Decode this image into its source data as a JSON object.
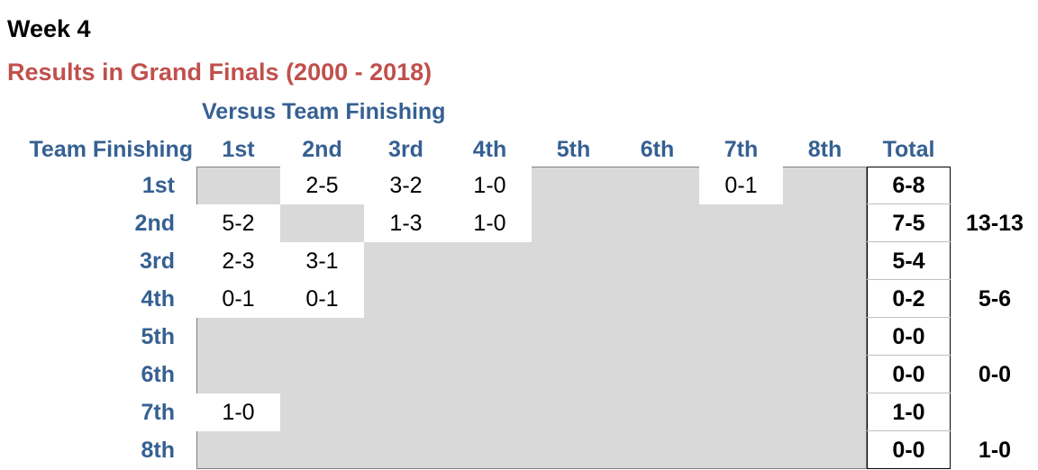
{
  "header": {
    "week": "Week 4",
    "subtitle": "Results in Grand Finals (2000 - 2018)",
    "versus_label": "Versus Team Finishing",
    "row_header": "Team Finishing"
  },
  "columns": [
    "1st",
    "2nd",
    "3rd",
    "4th",
    "5th",
    "6th",
    "7th",
    "8th"
  ],
  "total_label": "Total",
  "rows": [
    {
      "label": "1st",
      "cells": [
        "",
        "2-5",
        "3-2",
        "1-0",
        "",
        "",
        "0-1",
        ""
      ],
      "total": "6-8"
    },
    {
      "label": "2nd",
      "cells": [
        "5-2",
        "",
        "1-3",
        "1-0",
        "",
        "",
        "",
        ""
      ],
      "total": "7-5"
    },
    {
      "label": "3rd",
      "cells": [
        "2-3",
        "3-1",
        "",
        "",
        "",
        "",
        "",
        ""
      ],
      "total": "5-4"
    },
    {
      "label": "4th",
      "cells": [
        "0-1",
        "0-1",
        "",
        "",
        "",
        "",
        "",
        ""
      ],
      "total": "0-2"
    },
    {
      "label": "5th",
      "cells": [
        "",
        "",
        "",
        "",
        "",
        "",
        "",
        ""
      ],
      "total": "0-0"
    },
    {
      "label": "6th",
      "cells": [
        "",
        "",
        "",
        "",
        "",
        "",
        "",
        ""
      ],
      "total": "0-0"
    },
    {
      "label": "7th",
      "cells": [
        "1-0",
        "",
        "",
        "",
        "",
        "",
        "",
        ""
      ],
      "total": "1-0"
    },
    {
      "label": "8th",
      "cells": [
        "",
        "",
        "",
        "",
        "",
        "",
        "",
        ""
      ],
      "total": "0-0"
    }
  ],
  "aggregates": [
    "",
    "13-13",
    "",
    "5-6",
    "",
    "0-0",
    "",
    "1-0"
  ],
  "colors": {
    "header_blue": "#366092",
    "subtitle_red": "#c0504d",
    "empty_cell_gray": "#d9d9d9"
  }
}
